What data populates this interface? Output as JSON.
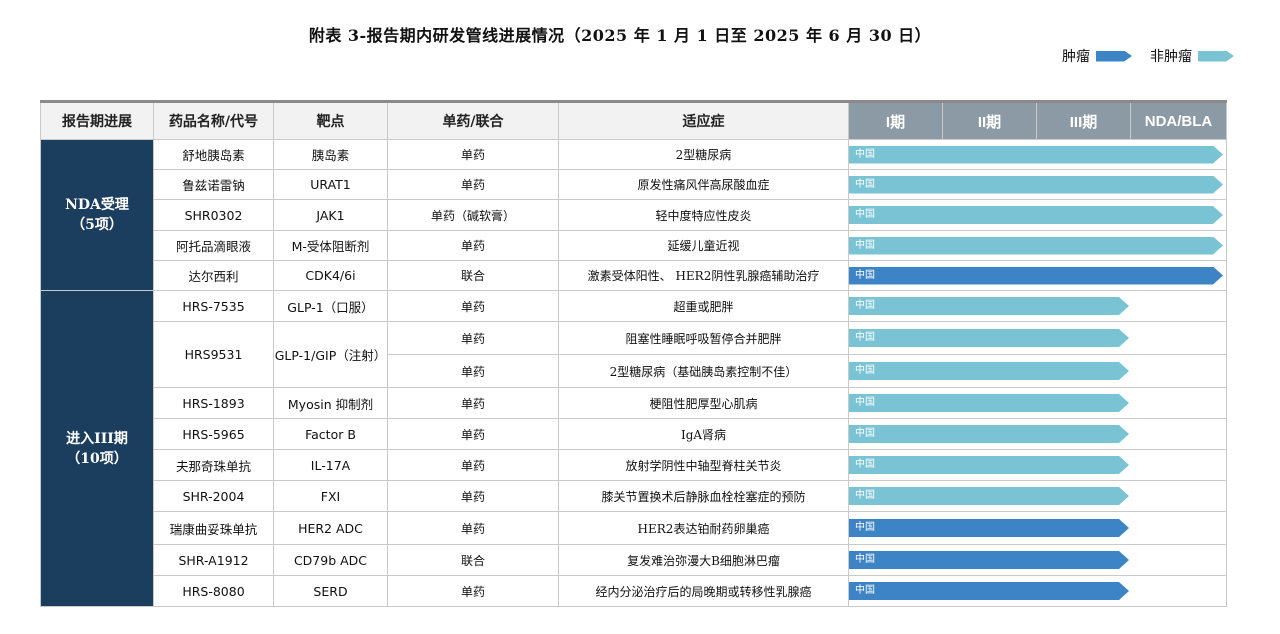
{
  "title": "附表 3-报告期内研发管线进展情况（2025 年 1 月 1 日至 2025 年 6 月 30 日）",
  "legend": {
    "oncology": "肿瘤",
    "non_oncology": "非肿瘤",
    "oncology_color": "#3d84c6",
    "non_oncology_color": "#79c3d5"
  },
  "headers": {
    "progress": "报告期进展",
    "drug": "药品名称/代号",
    "target": "靶点",
    "mode": "单药/联合",
    "indication": "适应症",
    "phase1": "I期",
    "phase2": "II期",
    "phase3": "III期",
    "nda": "NDA/BLA"
  },
  "groups": [
    {
      "label": "NDA受理",
      "count": "（5项）"
    },
    {
      "label": "进入III期",
      "count": "（10项）"
    }
  ],
  "rows": [
    {
      "drug": "舒地胰岛素",
      "target": "胰岛素",
      "mode": "单药",
      "indication": "2型糖尿病",
      "region": "中国",
      "stage": "NDA",
      "type": "non_oncology"
    },
    {
      "drug": "鲁兹诺雷钠",
      "target": "URAT1",
      "mode": "单药",
      "indication": "原发性痛风伴高尿酸血症",
      "region": "中国",
      "stage": "NDA",
      "type": "non_oncology"
    },
    {
      "drug": "SHR0302",
      "target": "JAK1",
      "mode": "单药（碱软膏）",
      "indication": "轻中度特应性皮炎",
      "region": "中国",
      "stage": "NDA",
      "type": "non_oncology"
    },
    {
      "drug": "阿托品滴眼液",
      "target": "M-受体阻断剂",
      "mode": "单药",
      "indication": "延缓儿童近视",
      "region": "中国",
      "stage": "NDA",
      "type": "non_oncology"
    },
    {
      "drug": "达尔西利",
      "target": "CDK4/6i",
      "mode": "联合",
      "indication": "激素受体阳性、 HER2阴性乳腺癌辅助治疗",
      "region": "中国",
      "stage": "NDA",
      "type": "oncology"
    },
    {
      "drug": "HRS-7535",
      "target": "GLP-1（口服）",
      "mode": "单药",
      "indication": "超重或肥胖",
      "region": "中国",
      "stage": "III",
      "type": "non_oncology"
    },
    {
      "drug": "HRS9531",
      "target": "GLP-1/GIP（注射）",
      "mode": "单药",
      "indication": "阻塞性睡眠呼吸暂停合并肥胖",
      "region": "中国",
      "stage": "III",
      "type": "non_oncology"
    },
    {
      "drug": "",
      "target": "",
      "mode": "单药",
      "indication": "2型糖尿病（基础胰岛素控制不佳）",
      "region": "中国",
      "stage": "III",
      "type": "non_oncology"
    },
    {
      "drug": "HRS-1893",
      "target": "Myosin 抑制剂",
      "mode": "单药",
      "indication": "梗阻性肥厚型心肌病",
      "region": "中国",
      "stage": "III",
      "type": "non_oncology"
    },
    {
      "drug": "HRS-5965",
      "target": "Factor B",
      "mode": "单药",
      "indication": "IgA肾病",
      "region": "中国",
      "stage": "III",
      "type": "non_oncology"
    },
    {
      "drug": "夫那奇珠单抗",
      "target": "IL-17A",
      "mode": "单药",
      "indication": "放射学阴性中轴型脊柱关节炎",
      "region": "中国",
      "stage": "III",
      "type": "non_oncology"
    },
    {
      "drug": "SHR-2004",
      "target": "FXI",
      "mode": "单药",
      "indication": "膝关节置换术后静脉血栓栓塞症的预防",
      "region": "中国",
      "stage": "III",
      "type": "non_oncology"
    },
    {
      "drug": "瑞康曲妥珠单抗",
      "target": "HER2 ADC",
      "mode": "单药",
      "indication": "HER2表达铂耐药卵巢癌",
      "region": "中国",
      "stage": "III",
      "type": "oncology"
    },
    {
      "drug": "SHR-A1912",
      "target": "CD79b ADC",
      "mode": "联合",
      "indication": "复发难治弥漫大B细胞淋巴瘤",
      "region": "中国",
      "stage": "III",
      "type": "oncology"
    },
    {
      "drug": "HRS-8080",
      "target": "SERD",
      "mode": "单药",
      "indication": "经内分泌治疗后的局晚期或转移性乳腺癌",
      "region": "中国",
      "stage": "III",
      "type": "oncology"
    }
  ]
}
